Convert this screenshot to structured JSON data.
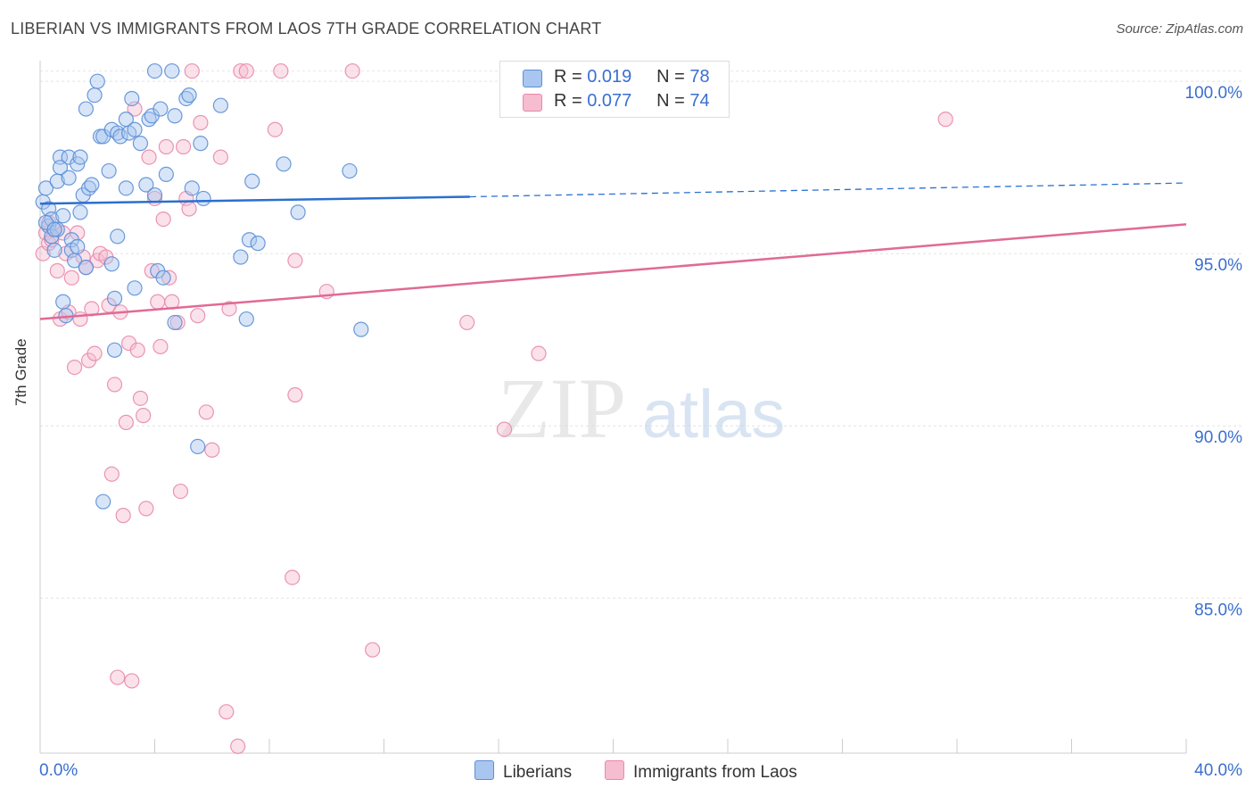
{
  "title": "LIBERIAN VS IMMIGRANTS FROM LAOS 7TH GRADE CORRELATION CHART",
  "source": "Source: ZipAtlas.com",
  "watermark": {
    "zip": "ZIP",
    "atlas": "atlas"
  },
  "legend_top": {
    "rows": [
      {
        "r_label": "R =",
        "r_value": "0.019",
        "n_label": "N =",
        "n_value": "78"
      },
      {
        "r_label": "R =",
        "r_value": "0.077",
        "n_label": "N =",
        "n_value": "74"
      }
    ]
  },
  "legend_bottom": {
    "series1": "Liberians",
    "series2": "Immigrants from Laos"
  },
  "colors": {
    "blue_fill": "#a9c6f0",
    "blue_stroke": "#5b8fd6",
    "blue_line": "#2a6fcf",
    "pink_fill": "#f6bcd0",
    "pink_stroke": "#e88aab",
    "pink_line": "#e06a96",
    "tick_label": "#3a6fd0"
  },
  "chart_data": {
    "type": "scatter",
    "title": "LIBERIAN VS IMMIGRANTS FROM LAOS 7TH GRADE CORRELATION CHART",
    "xlabel": "",
    "ylabel": "7th Grade",
    "xlim": [
      0,
      40
    ],
    "ylim": [
      80.5,
      100.6
    ],
    "x_tick_labels": [
      "0.0%",
      "40.0%"
    ],
    "y_ticks": [
      85,
      90,
      95,
      100
    ],
    "y_tick_labels": [
      "85.0%",
      "90.0%",
      "95.0%",
      "100.0%"
    ],
    "grid": true,
    "series": [
      {
        "name": "Liberians",
        "R": 0.019,
        "N": 78,
        "trend": {
          "x0": 0,
          "y0": 96.45,
          "x1": 15,
          "y1": 96.65,
          "dashed_to_x": 40,
          "dashed_to_y": 97.05
        },
        "points": [
          [
            0.1,
            96.5
          ],
          [
            0.2,
            96.9
          ],
          [
            0.3,
            96.3
          ],
          [
            0.3,
            95.8
          ],
          [
            0.4,
            96.0
          ],
          [
            0.4,
            95.5
          ],
          [
            0.5,
            95.1
          ],
          [
            0.6,
            95.7
          ],
          [
            0.6,
            97.1
          ],
          [
            0.7,
            97.8
          ],
          [
            0.7,
            97.5
          ],
          [
            0.8,
            96.1
          ],
          [
            0.8,
            93.6
          ],
          [
            0.9,
            93.2
          ],
          [
            1.0,
            97.2
          ],
          [
            1.0,
            97.8
          ],
          [
            1.1,
            95.4
          ],
          [
            1.1,
            95.1
          ],
          [
            1.2,
            94.8
          ],
          [
            1.3,
            95.2
          ],
          [
            1.3,
            97.6
          ],
          [
            1.4,
            96.2
          ],
          [
            1.4,
            97.8
          ],
          [
            1.5,
            96.7
          ],
          [
            1.6,
            94.6
          ],
          [
            1.6,
            99.2
          ],
          [
            1.7,
            96.9
          ],
          [
            1.8,
            97.0
          ],
          [
            1.9,
            99.6
          ],
          [
            2.0,
            100.0
          ],
          [
            2.1,
            98.4
          ],
          [
            2.2,
            98.4
          ],
          [
            2.4,
            97.4
          ],
          [
            2.5,
            94.7
          ],
          [
            2.5,
            98.6
          ],
          [
            2.6,
            92.2
          ],
          [
            2.6,
            93.7
          ],
          [
            2.7,
            95.5
          ],
          [
            2.7,
            98.5
          ],
          [
            2.8,
            98.4
          ],
          [
            3.0,
            98.9
          ],
          [
            3.0,
            96.9
          ],
          [
            3.1,
            98.5
          ],
          [
            3.2,
            99.5
          ],
          [
            3.3,
            94.0
          ],
          [
            3.3,
            98.6
          ],
          [
            3.5,
            98.2
          ],
          [
            3.7,
            97.0
          ],
          [
            3.8,
            98.9
          ],
          [
            3.9,
            99.0
          ],
          [
            4.0,
            100.3
          ],
          [
            4.0,
            96.7
          ],
          [
            4.1,
            94.5
          ],
          [
            4.2,
            99.2
          ],
          [
            4.3,
            94.3
          ],
          [
            4.4,
            97.3
          ],
          [
            4.6,
            100.3
          ],
          [
            4.7,
            93.0
          ],
          [
            4.7,
            99.0
          ],
          [
            5.1,
            99.5
          ],
          [
            5.2,
            99.6
          ],
          [
            5.3,
            96.9
          ],
          [
            5.5,
            89.4
          ],
          [
            5.6,
            98.2
          ],
          [
            5.7,
            96.6
          ],
          [
            6.3,
            99.3
          ],
          [
            7.0,
            94.9
          ],
          [
            7.2,
            93.1
          ],
          [
            7.3,
            95.4
          ],
          [
            7.4,
            97.1
          ],
          [
            7.6,
            95.3
          ],
          [
            8.5,
            97.6
          ],
          [
            9.0,
            96.2
          ],
          [
            10.8,
            97.4
          ],
          [
            11.2,
            92.8
          ],
          [
            2.2,
            87.8
          ],
          [
            0.2,
            95.9
          ],
          [
            0.5,
            95.7
          ]
        ]
      },
      {
        "name": "Immigrants from Laos",
        "R": 0.077,
        "N": 74,
        "trend": {
          "x0": 0,
          "y0": 93.1,
          "x1": 40,
          "y1": 95.85
        },
        "points": [
          [
            0.1,
            95.0
          ],
          [
            0.2,
            95.6
          ],
          [
            0.3,
            95.9
          ],
          [
            0.3,
            95.3
          ],
          [
            0.4,
            95.4
          ],
          [
            0.5,
            95.7
          ],
          [
            0.6,
            94.5
          ],
          [
            0.7,
            93.1
          ],
          [
            0.8,
            95.6
          ],
          [
            0.9,
            95.0
          ],
          [
            1.0,
            93.3
          ],
          [
            1.1,
            94.3
          ],
          [
            1.2,
            91.7
          ],
          [
            1.3,
            95.6
          ],
          [
            1.4,
            93.1
          ],
          [
            1.5,
            94.9
          ],
          [
            1.6,
            94.6
          ],
          [
            1.7,
            91.9
          ],
          [
            1.8,
            93.4
          ],
          [
            1.9,
            92.1
          ],
          [
            2.0,
            94.8
          ],
          [
            2.1,
            95.0
          ],
          [
            2.3,
            94.9
          ],
          [
            2.4,
            93.5
          ],
          [
            2.5,
            88.6
          ],
          [
            2.6,
            91.2
          ],
          [
            2.7,
            82.7
          ],
          [
            2.8,
            93.3
          ],
          [
            2.9,
            87.4
          ],
          [
            3.0,
            90.1
          ],
          [
            3.1,
            92.4
          ],
          [
            3.2,
            82.6
          ],
          [
            3.3,
            99.2
          ],
          [
            3.4,
            92.2
          ],
          [
            3.5,
            90.8
          ],
          [
            3.6,
            90.3
          ],
          [
            3.7,
            87.6
          ],
          [
            3.8,
            97.8
          ],
          [
            3.9,
            94.5
          ],
          [
            4.0,
            96.6
          ],
          [
            4.1,
            93.6
          ],
          [
            4.2,
            92.3
          ],
          [
            4.3,
            96.0
          ],
          [
            4.4,
            98.1
          ],
          [
            4.5,
            94.3
          ],
          [
            4.6,
            93.6
          ],
          [
            4.8,
            93.0
          ],
          [
            4.9,
            88.1
          ],
          [
            5.0,
            98.1
          ],
          [
            5.1,
            96.6
          ],
          [
            5.2,
            96.3
          ],
          [
            5.3,
            100.3
          ],
          [
            5.5,
            93.2
          ],
          [
            5.6,
            98.8
          ],
          [
            5.8,
            90.4
          ],
          [
            6.0,
            89.3
          ],
          [
            6.3,
            97.8
          ],
          [
            6.5,
            81.7
          ],
          [
            6.6,
            93.4
          ],
          [
            6.9,
            80.7
          ],
          [
            7.0,
            100.3
          ],
          [
            7.2,
            100.3
          ],
          [
            8.2,
            98.6
          ],
          [
            8.4,
            100.3
          ],
          [
            8.8,
            85.6
          ],
          [
            8.9,
            94.8
          ],
          [
            8.9,
            90.9
          ],
          [
            10.0,
            93.9
          ],
          [
            10.9,
            100.3
          ],
          [
            11.6,
            83.5
          ],
          [
            14.9,
            93.0
          ],
          [
            16.2,
            89.9
          ],
          [
            17.4,
            92.1
          ],
          [
            31.6,
            98.9
          ]
        ]
      }
    ]
  }
}
